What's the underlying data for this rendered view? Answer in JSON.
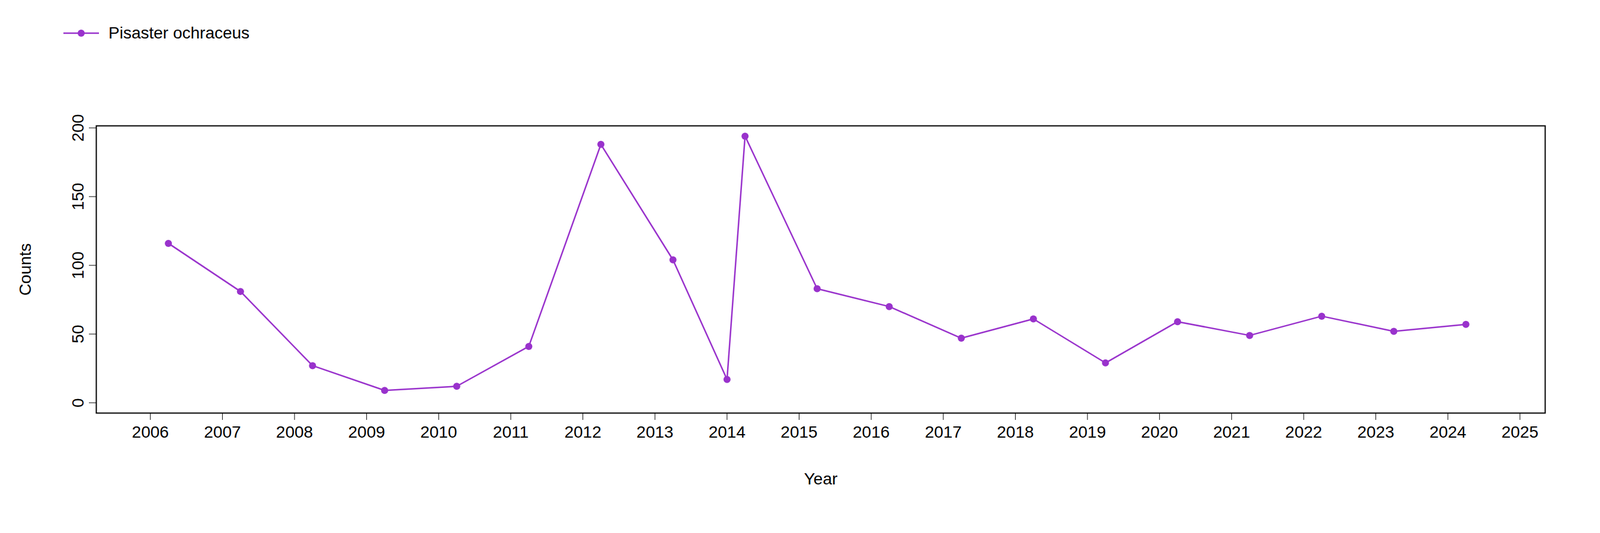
{
  "chart_data": {
    "type": "line",
    "x_label": "Year",
    "y_label": "Counts",
    "x": [
      2006.25,
      2007.25,
      2008.25,
      2009.25,
      2010.25,
      2011.25,
      2012.25,
      2013.25,
      2014.0,
      2014.25,
      2015.25,
      2016.25,
      2017.25,
      2018.25,
      2019.25,
      2020.25,
      2021.25,
      2022.25,
      2023.25,
      2024.25
    ],
    "series": [
      {
        "name": "Pisaster ochraceus",
        "color": "#9932cc",
        "marker": "circle",
        "line_style": "solid",
        "values": [
          116,
          81,
          27,
          9,
          12,
          41,
          188,
          104,
          17,
          194,
          83,
          70,
          47,
          61,
          29,
          59,
          49,
          63,
          52,
          57
        ]
      }
    ],
    "xlim": [
      2005.25,
      2025.35
    ],
    "xticks": [
      2006,
      2007,
      2008,
      2009,
      2010,
      2011,
      2012,
      2013,
      2014,
      2015,
      2016,
      2017,
      2018,
      2019,
      2020,
      2021,
      2022,
      2023,
      2024,
      2025
    ],
    "ylim": [
      -7.5,
      201.5
    ],
    "yticks": [
      0,
      50,
      100,
      150,
      200
    ],
    "grid": false,
    "legend": "top-left"
  }
}
